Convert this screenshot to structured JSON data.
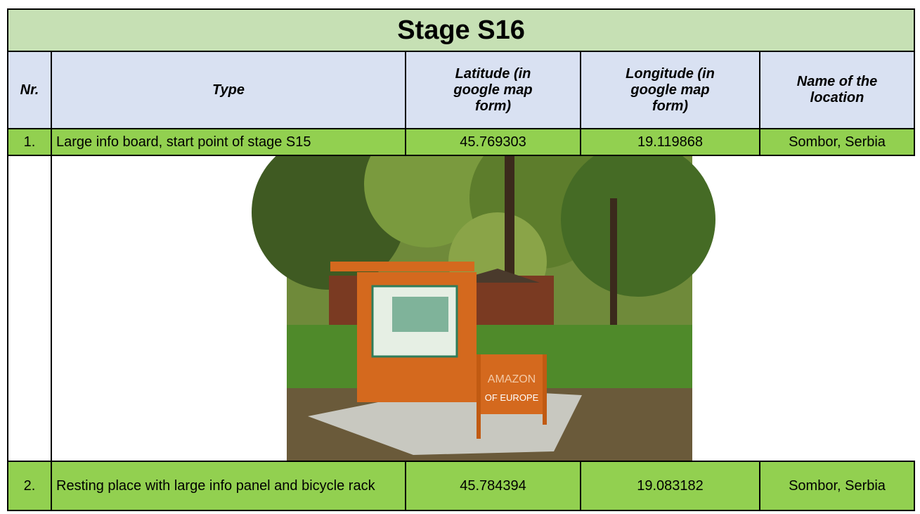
{
  "title": "Stage S16",
  "table": {
    "header": [
      "Nr.",
      "Type",
      "Latitude (in google map form)",
      "Longitude (in google map form)",
      "Name of the location"
    ],
    "rows": [
      [
        "1.",
        "Large info board, start point of stage S15",
        45.769303,
        19.119868,
        "Sombor, Serbia"
      ],
      [
        "2.",
        "Resting place with large info panel and bicycle rack",
        45.784394,
        19.083182,
        "Sombor, Serbia"
      ]
    ]
  },
  "photo": {
    "sign_text": [
      "AMAZON",
      "OF EUROPE"
    ]
  }
}
